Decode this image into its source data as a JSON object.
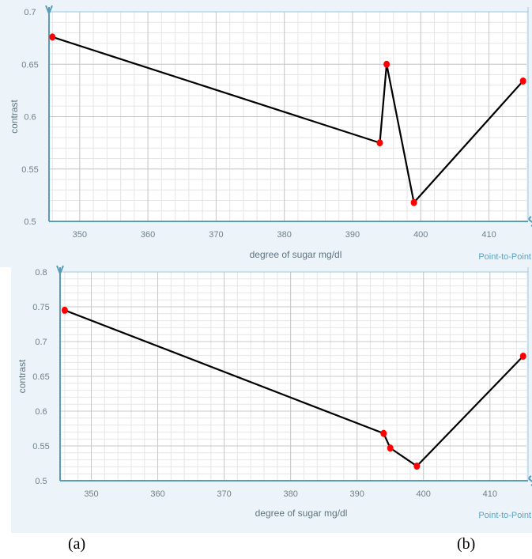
{
  "chart_data": [
    {
      "type": "line",
      "panel_label": "(a)",
      "xlabel": "degree of sugar mg/dl",
      "ylabel": "contrast",
      "mode_label": "Point-to-Point",
      "xlim": [
        345.5,
        415.5
      ],
      "ylim": [
        0.5,
        0.7
      ],
      "x_ticks": [
        350,
        360,
        370,
        380,
        390,
        400,
        410
      ],
      "y_ticks": [
        0.5,
        0.55,
        0.6,
        0.65,
        0.7
      ],
      "x_tick_labels": [
        "350",
        "360",
        "370",
        "380",
        "390",
        "400",
        "410"
      ],
      "y_tick_labels": [
        "0.5",
        "0.55",
        "0.6",
        "0.65",
        "0.7"
      ],
      "x": [
        346,
        394,
        395,
        399,
        415
      ],
      "y": [
        0.676,
        0.575,
        0.65,
        0.518,
        0.634
      ],
      "line_color": "#000000",
      "marker_color": "#ff0000",
      "grid": true
    },
    {
      "type": "line",
      "panel_label": "(b)",
      "xlabel": "degree of sugar mg/dl",
      "ylabel": "contrast",
      "mode_label": "Point-to-Point",
      "xlim": [
        345.3,
        415.5
      ],
      "ylim": [
        0.5,
        0.8
      ],
      "x_ticks": [
        350,
        360,
        370,
        380,
        390,
        400,
        410
      ],
      "y_ticks": [
        0.5,
        0.55,
        0.6,
        0.65,
        0.7,
        0.75,
        0.8
      ],
      "x_tick_labels": [
        "350",
        "360",
        "370",
        "380",
        "390",
        "400",
        "410"
      ],
      "y_tick_labels": [
        "0.5",
        "0.55",
        "0.6",
        "0.65",
        "0.7",
        "0.75",
        "0.8"
      ],
      "x": [
        346,
        394,
        395,
        399,
        415
      ],
      "y": [
        0.745,
        0.568,
        0.547,
        0.521,
        0.679
      ],
      "line_color": "#000000",
      "marker_color": "#ff0000",
      "grid": true
    }
  ]
}
